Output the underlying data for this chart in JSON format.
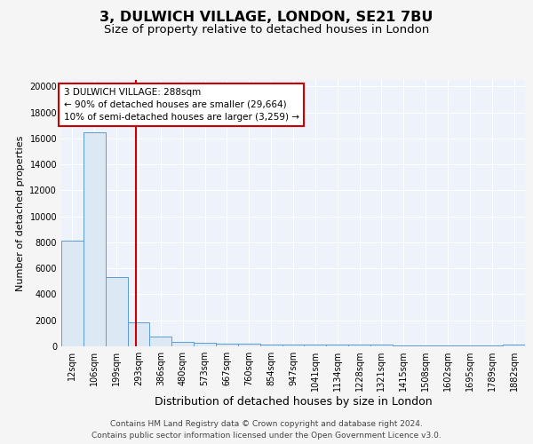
{
  "title": "3, DULWICH VILLAGE, LONDON, SE21 7BU",
  "subtitle": "Size of property relative to detached houses in London",
  "xlabel": "Distribution of detached houses by size in London",
  "ylabel": "Number of detached properties",
  "categories": [
    "12sqm",
    "106sqm",
    "199sqm",
    "293sqm",
    "386sqm",
    "480sqm",
    "573sqm",
    "667sqm",
    "760sqm",
    "854sqm",
    "947sqm",
    "1041sqm",
    "1134sqm",
    "1228sqm",
    "1321sqm",
    "1415sqm",
    "1508sqm",
    "1602sqm",
    "1695sqm",
    "1789sqm",
    "1882sqm"
  ],
  "values": [
    8100,
    16500,
    5300,
    1850,
    750,
    320,
    250,
    210,
    190,
    170,
    155,
    145,
    130,
    120,
    110,
    100,
    90,
    80,
    70,
    60,
    155
  ],
  "bar_color": "#dce9f5",
  "bar_edge_color": "#5b9bd5",
  "red_line_x": 2.88,
  "annotation_text": "3 DULWICH VILLAGE: 288sqm\n← 90% of detached houses are smaller (29,664)\n10% of semi-detached houses are larger (3,259) →",
  "annotation_box_color": "#ffffff",
  "annotation_box_edge_color": "#cc0000",
  "red_line_color": "#cc0000",
  "ylim": [
    0,
    20500
  ],
  "yticks": [
    0,
    2000,
    4000,
    6000,
    8000,
    10000,
    12000,
    14000,
    16000,
    18000,
    20000
  ],
  "background_color": "#edf2fb",
  "grid_color": "#ffffff",
  "fig_background_color": "#f5f5f5",
  "footer": "Contains HM Land Registry data © Crown copyright and database right 2024.\nContains public sector information licensed under the Open Government Licence v3.0.",
  "title_fontsize": 11.5,
  "subtitle_fontsize": 9.5,
  "xlabel_fontsize": 9,
  "ylabel_fontsize": 8,
  "tick_fontsize": 7,
  "annotation_fontsize": 7.5,
  "footer_fontsize": 6.5
}
